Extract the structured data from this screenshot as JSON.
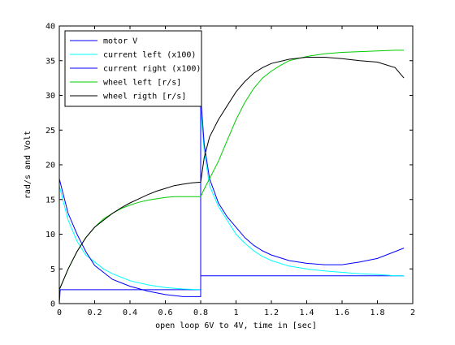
{
  "chart_data": {
    "type": "line",
    "title": "",
    "xlabel": "open loop 6V to 4V, time in [sec]",
    "ylabel": "rad/s and Volt",
    "xlim": [
      0,
      2
    ],
    "ylim": [
      0,
      40
    ],
    "xticks": [
      0,
      0.2,
      0.4,
      0.6,
      0.8,
      1,
      1.2,
      1.4,
      1.6,
      1.8,
      2
    ],
    "xtick_labels": [
      "0",
      "0.2",
      "0.4",
      "0.6",
      "0.8",
      "1",
      "1.2",
      "1.4",
      "1.6",
      "1.8",
      "2"
    ],
    "yticks": [
      0,
      5,
      10,
      15,
      20,
      25,
      30,
      35,
      40
    ],
    "ytick_labels": [
      "0",
      "5",
      "10",
      "15",
      "20",
      "25",
      "30",
      "35",
      "40"
    ],
    "grid": false,
    "legend_position": "top-left",
    "series": [
      {
        "name": "motor V",
        "color": "#0000ff",
        "x": [
          0,
          0.005,
          0.01,
          0.8,
          0.8,
          1.95
        ],
        "y": [
          0,
          2,
          2,
          2,
          4,
          4
        ]
      },
      {
        "name": "current left (x100)",
        "color": "#00ffff",
        "x": [
          0,
          0.02,
          0.05,
          0.1,
          0.15,
          0.2,
          0.25,
          0.3,
          0.35,
          0.4,
          0.5,
          0.6,
          0.7,
          0.8,
          0.8,
          0.82,
          0.85,
          0.9,
          0.95,
          1.0,
          1.05,
          1.1,
          1.15,
          1.2,
          1.3,
          1.4,
          1.5,
          1.6,
          1.7,
          1.8,
          1.9,
          1.95
        ],
        "y": [
          17,
          15,
          12,
          9,
          7,
          6,
          5,
          4.3,
          3.8,
          3.3,
          2.7,
          2.3,
          2.1,
          2,
          28,
          22,
          17,
          14,
          12,
          10,
          8.7,
          7.6,
          6.8,
          6.2,
          5.4,
          5,
          4.7,
          4.5,
          4.3,
          4.2,
          4,
          4
        ]
      },
      {
        "name": "current right (x100)",
        "color": "#0000ff",
        "x": [
          0,
          0.02,
          0.05,
          0.1,
          0.15,
          0.2,
          0.25,
          0.3,
          0.35,
          0.4,
          0.5,
          0.6,
          0.7,
          0.8,
          0.8,
          0.82,
          0.85,
          0.9,
          0.95,
          1.0,
          1.05,
          1.1,
          1.15,
          1.2,
          1.3,
          1.4,
          1.5,
          1.6,
          1.7,
          1.8,
          1.9,
          1.95
        ],
        "y": [
          18,
          16,
          13,
          10,
          7.5,
          5.5,
          4.5,
          3.5,
          3,
          2.5,
          1.8,
          1.3,
          1,
          1,
          30,
          23,
          18,
          14.5,
          12.5,
          11,
          9.5,
          8.4,
          7.6,
          7,
          6.2,
          5.8,
          5.6,
          5.6,
          6,
          6.5,
          7.5,
          8
        ]
      },
      {
        "name": "wheel left [r/s]",
        "color": "#00cc00",
        "x": [
          0,
          0.05,
          0.1,
          0.15,
          0.2,
          0.25,
          0.3,
          0.35,
          0.4,
          0.45,
          0.5,
          0.55,
          0.6,
          0.65,
          0.7,
          0.75,
          0.8,
          0.82,
          0.85,
          0.9,
          0.95,
          1.0,
          1.05,
          1.1,
          1.15,
          1.2,
          1.25,
          1.3,
          1.4,
          1.5,
          1.6,
          1.7,
          1.8,
          1.9,
          1.95
        ],
        "y": [
          2,
          5,
          7.5,
          9.5,
          11,
          12.2,
          13,
          13.7,
          14.2,
          14.6,
          14.9,
          15.1,
          15.3,
          15.4,
          15.4,
          15.4,
          15.4,
          16.5,
          18,
          20.5,
          23.5,
          26.5,
          29,
          31,
          32.5,
          33.5,
          34.3,
          35,
          35.6,
          36,
          36.2,
          36.3,
          36.4,
          36.5,
          36.5
        ]
      },
      {
        "name": "wheel rigth [r/s]",
        "color": "#000000",
        "x": [
          0,
          0.05,
          0.1,
          0.15,
          0.2,
          0.25,
          0.3,
          0.35,
          0.4,
          0.45,
          0.5,
          0.55,
          0.6,
          0.65,
          0.7,
          0.75,
          0.8,
          0.82,
          0.85,
          0.9,
          0.95,
          1.0,
          1.05,
          1.1,
          1.15,
          1.2,
          1.3,
          1.4,
          1.5,
          1.6,
          1.7,
          1.8,
          1.9,
          1.95
        ],
        "y": [
          2,
          5,
          7.5,
          9.5,
          11,
          12,
          13,
          13.8,
          14.5,
          15.1,
          15.7,
          16.2,
          16.6,
          17,
          17.2,
          17.4,
          17.5,
          21,
          24,
          26.5,
          28.5,
          30.5,
          32,
          33.2,
          34,
          34.6,
          35.2,
          35.5,
          35.5,
          35.3,
          35,
          34.8,
          34,
          32.5
        ]
      }
    ]
  }
}
